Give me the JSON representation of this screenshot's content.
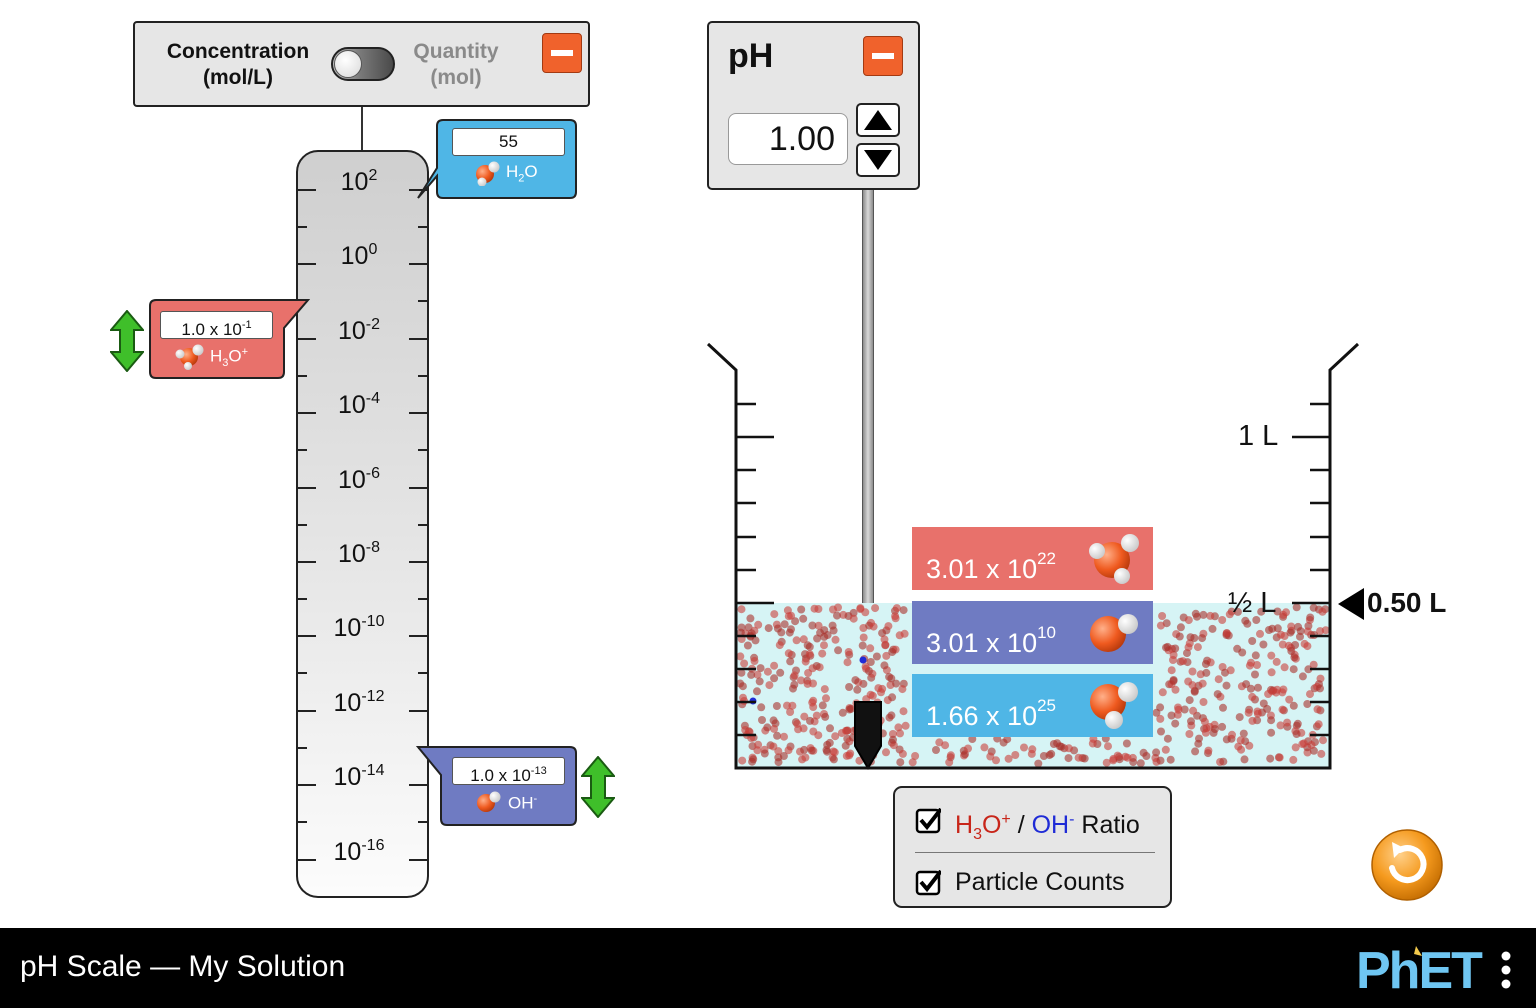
{
  "graph_panel": {
    "concentration_label_line1": "Concentration",
    "concentration_label_line2": "(mol/L)",
    "quantity_label_line1": "Quantity",
    "quantity_label_line2": "(mol)",
    "mode": "concentration"
  },
  "scale": {
    "tick_labels": [
      {
        "base": "10",
        "exp": "2"
      },
      {
        "base": "10",
        "exp": "0"
      },
      {
        "base": "10",
        "exp": "-2"
      },
      {
        "base": "10",
        "exp": "-4"
      },
      {
        "base": "10",
        "exp": "-6"
      },
      {
        "base": "10",
        "exp": "-8"
      },
      {
        "base": "10",
        "exp": "-10"
      },
      {
        "base": "10",
        "exp": "-12"
      },
      {
        "base": "10",
        "exp": "-14"
      },
      {
        "base": "10",
        "exp": "-16"
      }
    ]
  },
  "callouts": {
    "h2o": {
      "value": "55",
      "name": "H",
      "sub": "2",
      "tail": "O",
      "color": "#4fb6e6"
    },
    "h3o": {
      "value_base": "1.0 x 10",
      "value_exp": "-1",
      "name": "H",
      "sub": "3",
      "tail": "O",
      "charge": "+",
      "color": "#e8716b"
    },
    "oh": {
      "value_base": "1.0 x 10",
      "value_exp": "-13",
      "name": "OH",
      "charge": "-",
      "color": "#6f7bc2"
    }
  },
  "ph_meter": {
    "title": "pH",
    "value": "1.00"
  },
  "beaker": {
    "label_1l": "1 L",
    "label_half": "½ L",
    "volume_readout": "0.50 L",
    "solution_color": "#d6f4f5",
    "counts": [
      {
        "base": "3.01 x 10",
        "exp": "22",
        "species": "H3O+",
        "color": "#e8716b"
      },
      {
        "base": "3.01 x 10",
        "exp": "10",
        "species": "OH-",
        "color": "#6f7bc2"
      },
      {
        "base": "1.66 x 10",
        "exp": "25",
        "species": "H2O",
        "color": "#4fb6e6"
      }
    ]
  },
  "checkboxes": {
    "ratio": {
      "h": "H",
      "sub": "3",
      "o": "O",
      "plus": "+",
      "slash": " / ",
      "oh": "OH",
      "minus": "-",
      "suffix": " Ratio",
      "checked": true
    },
    "particle_counts": {
      "label": "Particle Counts",
      "checked": true
    }
  },
  "nav": {
    "title": "pH Scale — My Solution",
    "brand": "PhET"
  }
}
